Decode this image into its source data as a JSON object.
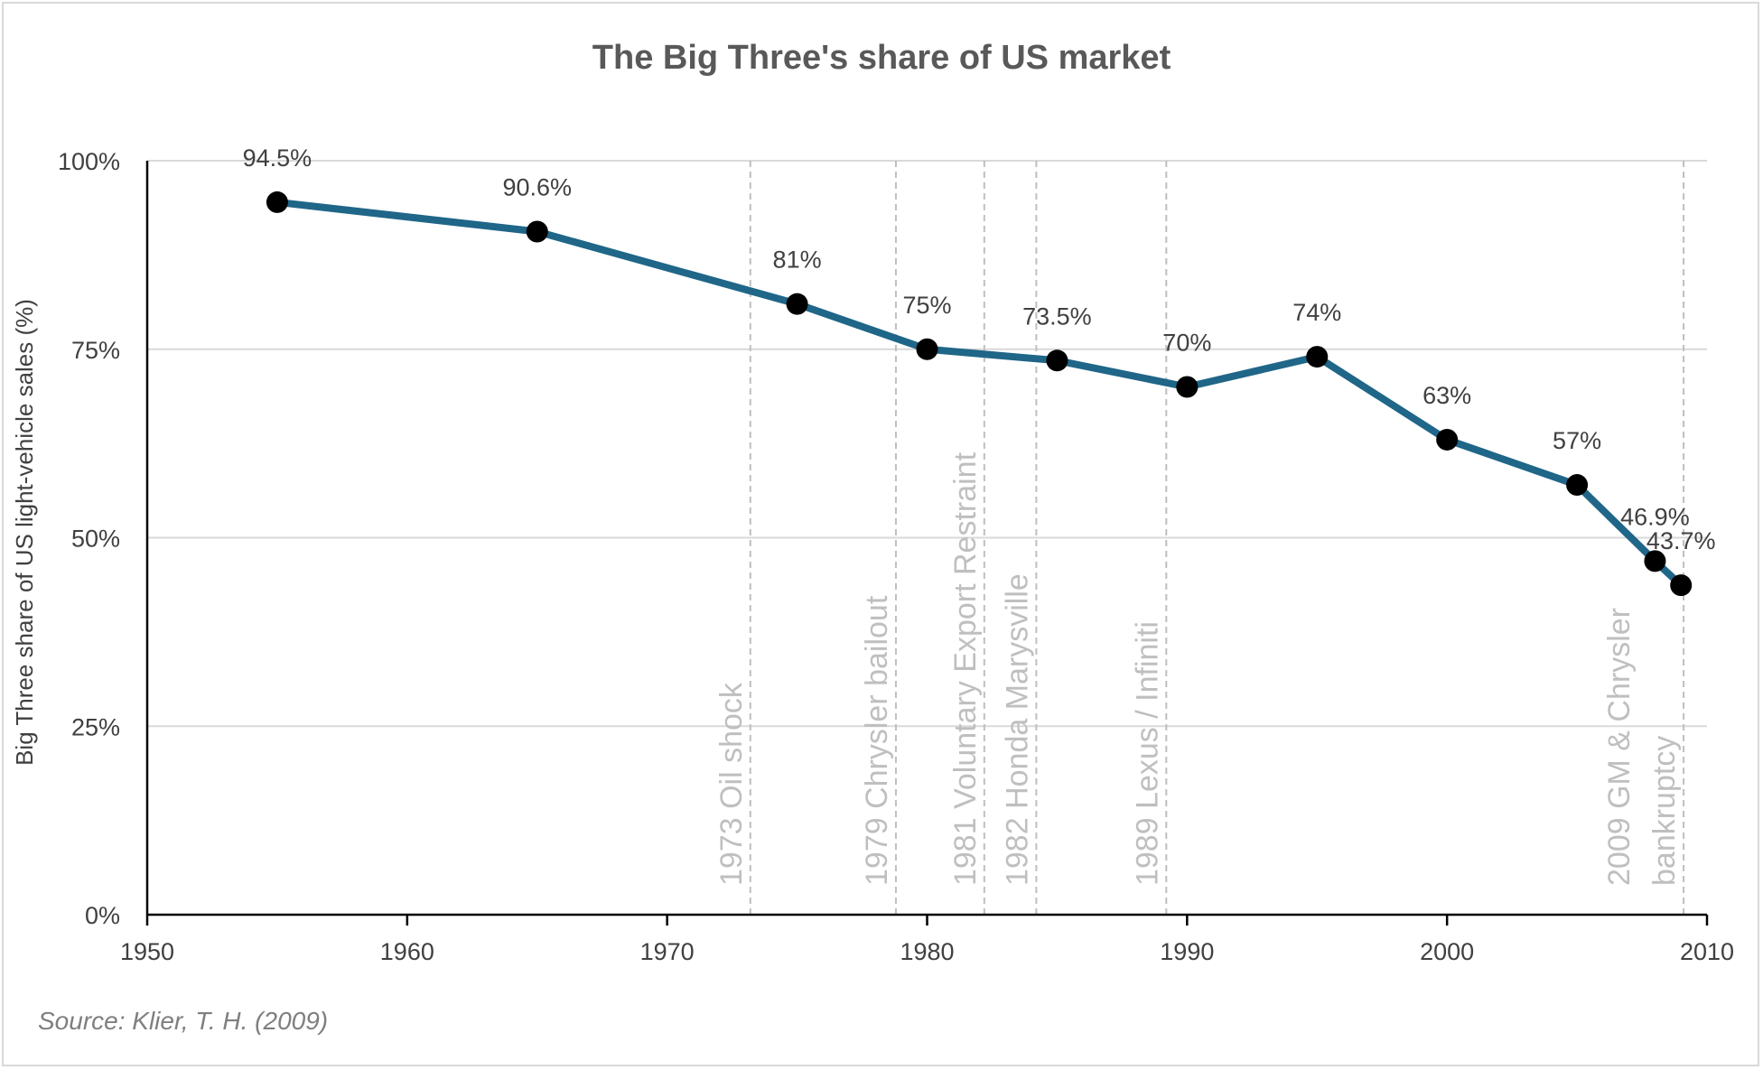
{
  "chart_data": {
    "type": "line",
    "title": "The Big Three's share of US market",
    "ylabel": "Big Three share of US light-vehicle sales (%)",
    "xlabel": "",
    "xlim": [
      1950,
      2010
    ],
    "ylim": [
      0,
      100
    ],
    "x_ticks": [
      "1950",
      "1960",
      "1970",
      "1980",
      "1990",
      "2000",
      "2010"
    ],
    "y_ticks": [
      "0%",
      "25%",
      "50%",
      "75%",
      "100%"
    ],
    "grid": "horizontal",
    "series": [
      {
        "x": [
          1955,
          1965,
          1975,
          1980,
          1985,
          1990,
          1995,
          2000,
          2005,
          2008,
          2009
        ],
        "y": [
          94.5,
          90.6,
          81,
          75,
          73.5,
          70,
          74,
          63,
          57,
          46.9,
          43.7
        ],
        "labels": [
          "94.5%",
          "90.6%",
          "81%",
          "75%",
          "73.5%",
          "70%",
          "74%",
          "63%",
          "57%",
          "46.9%",
          "43.7%"
        ],
        "color": "#1f6688"
      }
    ],
    "events": [
      {
        "x": 1973.2,
        "lines": [
          "1973 Oil shock"
        ]
      },
      {
        "x": 1978.8,
        "lines": [
          "1979 Chrysler bailout"
        ]
      },
      {
        "x": 1982.2,
        "lines": [
          "1981 Voluntary Export Restraint"
        ]
      },
      {
        "x": 1984.2,
        "lines": [
          "1982 Honda Marysville"
        ]
      },
      {
        "x": 1989.2,
        "lines": [
          "1989 Lexus / Infiniti"
        ]
      },
      {
        "x": 2009.1,
        "lines": [
          "2009 GM & Chrysler",
          "bankruptcy"
        ]
      }
    ],
    "source": "Source: Klier, T. H. (2009)",
    "colors": {
      "line": "#1f6688",
      "marker": "#000000",
      "grid": "#d9d9d9",
      "event": "#bfbfbf",
      "axis": "#000000"
    }
  }
}
